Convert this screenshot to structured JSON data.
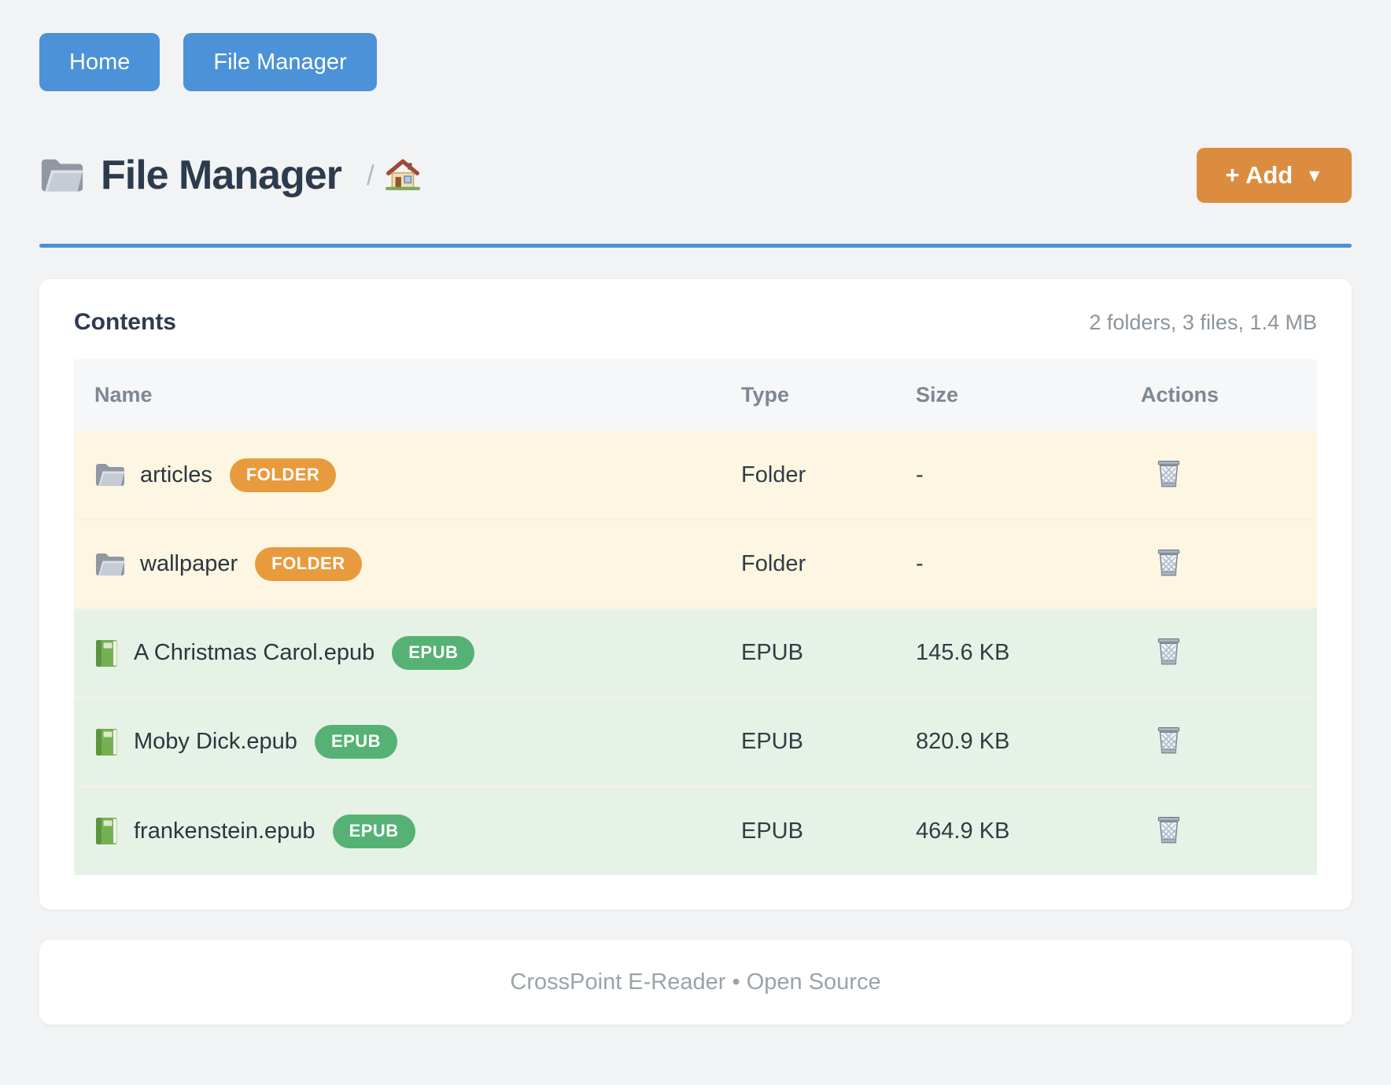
{
  "nav": {
    "buttons": [
      {
        "label": "Home"
      },
      {
        "label": "File Manager"
      }
    ]
  },
  "header": {
    "title": "File Manager",
    "breadcrumb_separator": "/",
    "breadcrumb_home_icon": "home-icon",
    "title_icon": "folder-icon",
    "add_label": "+ Add",
    "add_caret": "▼"
  },
  "contents": {
    "heading": "Contents",
    "summary": "2 folders, 3 files, 1.4 MB",
    "columns": [
      "Name",
      "Type",
      "Size",
      "Actions"
    ],
    "rows": [
      {
        "name": "articles",
        "kind": "folder",
        "icon": "folder-icon",
        "badge": "FOLDER",
        "type": "Folder",
        "size": "-"
      },
      {
        "name": "wallpaper",
        "kind": "folder",
        "icon": "folder-icon",
        "badge": "FOLDER",
        "type": "Folder",
        "size": "-"
      },
      {
        "name": "A Christmas Carol.epub",
        "kind": "epub",
        "icon": "book-icon",
        "badge": "EPUB",
        "type": "EPUB",
        "size": "145.6 KB"
      },
      {
        "name": "Moby Dick.epub",
        "kind": "epub",
        "icon": "book-icon",
        "badge": "EPUB",
        "type": "EPUB",
        "size": "820.9 KB"
      },
      {
        "name": "frankenstein.epub",
        "kind": "epub",
        "icon": "book-icon",
        "badge": "EPUB",
        "type": "EPUB",
        "size": "464.9 KB"
      }
    ],
    "actions_icon": "trash-icon"
  },
  "footer": {
    "text": "CrossPoint E-Reader • Open Source"
  },
  "colors": {
    "nav_button": "#4b92d8",
    "add_button": "#dc8c3e",
    "divider": "#4a90d8",
    "folder_badge": "#e89b3c",
    "epub_badge": "#55b274",
    "folder_row_bg": "#fdf6e2",
    "epub_row_bg": "#e7f2e6",
    "page_bg": "#f2f3f4",
    "heading_text": "#2d3b4e",
    "muted_text": "#8b959c"
  }
}
